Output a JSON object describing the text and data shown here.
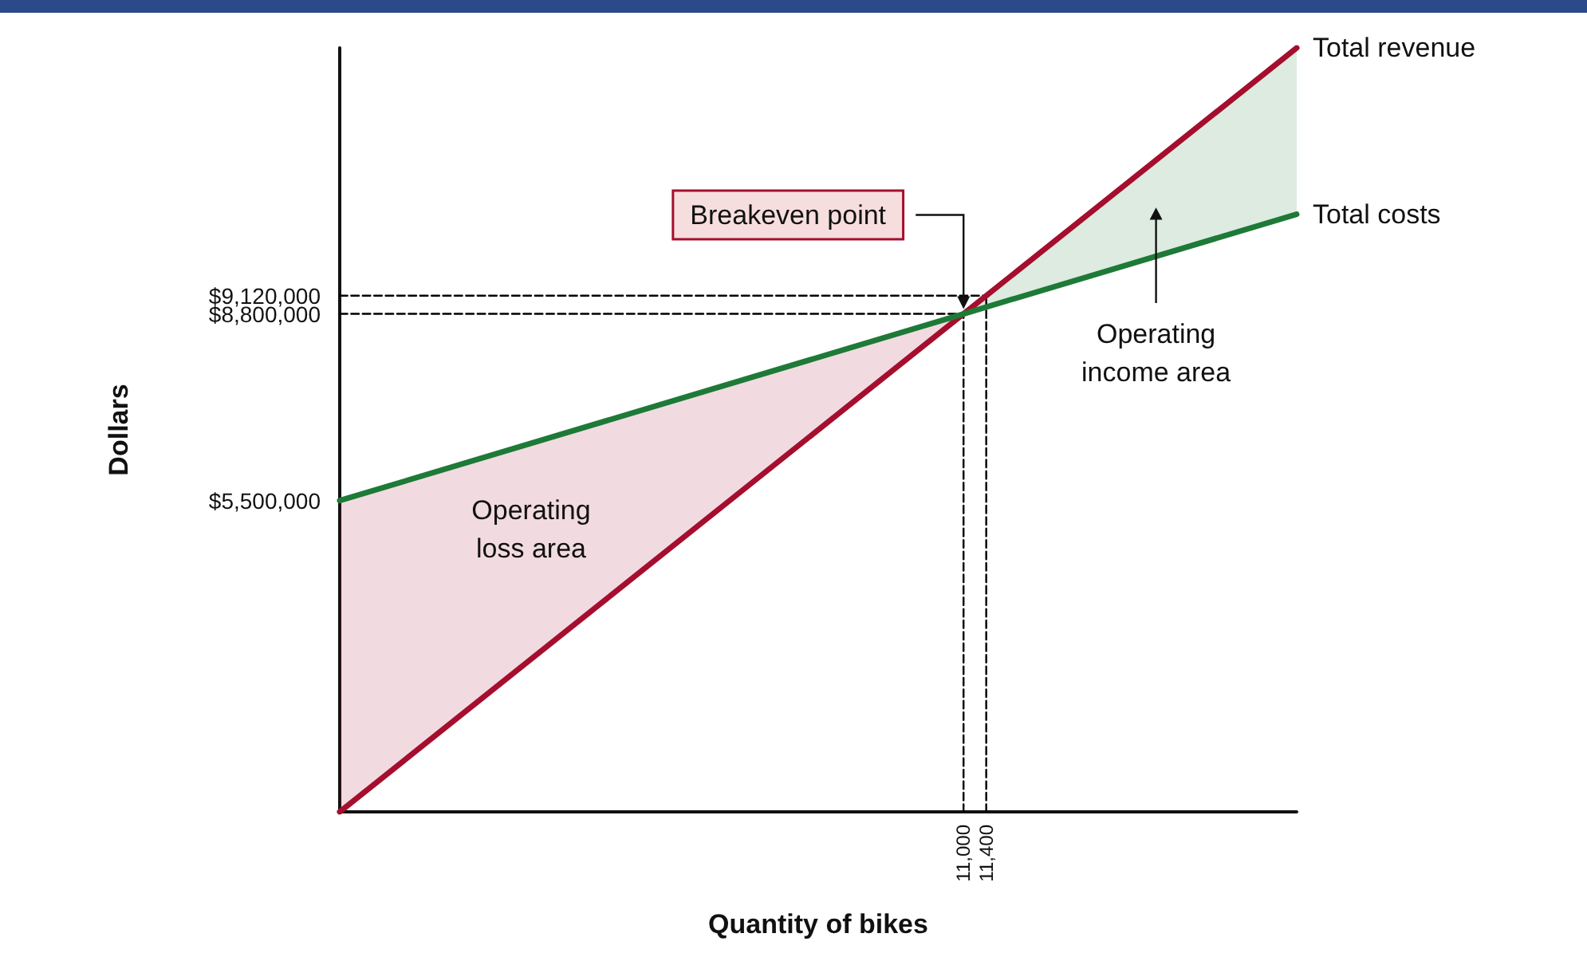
{
  "chart_data": {
    "type": "line",
    "xlabel": "Quantity of bikes",
    "ylabel": "Dollars",
    "xlim": [
      0,
      16875
    ],
    "ylim": [
      0,
      13500000
    ],
    "xticks": [
      {
        "value": 11000,
        "label": "11,000"
      },
      {
        "value": 11400,
        "label": "11,400"
      }
    ],
    "yticks": [
      {
        "value": 5500000,
        "label": "$5,500,000"
      },
      {
        "value": 8800000,
        "label": "$8,800,000"
      },
      {
        "value": 9120000,
        "label": "$9,120,000"
      }
    ],
    "series": [
      {
        "line_style": "dashed",
        "color": "#000000",
        "x": [
          0,
          11000
        ],
        "values": [
          8800000,
          8800000
        ]
      },
      {
        "line_style": "dashed",
        "color": "#000000",
        "x": [
          0,
          11400
        ],
        "values": [
          9120000,
          9120000
        ]
      },
      {
        "line_style": "dashed",
        "color": "#000000",
        "x": [
          11000,
          11000
        ],
        "values": [
          0,
          8800000
        ]
      },
      {
        "line_style": "dashed",
        "color": "#000000",
        "x": [
          11400,
          11400
        ],
        "values": [
          0,
          9120000
        ]
      },
      {
        "name": "Total revenue",
        "color": "#a50e2d",
        "x": [
          0,
          11000,
          16875
        ],
        "values": [
          0,
          8800000,
          13500000
        ],
        "lower": [
          0,
          8800000,
          null
        ],
        "upper": [
          5500000,
          8800000,
          null
        ]
      },
      {
        "name": "Total costs",
        "color": "#1e7a37",
        "x": [
          0,
          11000,
          16875
        ],
        "values": [
          5500000,
          8800000,
          10560000
        ],
        "lower": [
          null,
          8800000,
          10560000
        ],
        "upper": [
          null,
          8800000,
          13500000
        ]
      }
    ],
    "annotations": [
      {
        "text": "Breakeven point",
        "x": 11000,
        "y": 8800000
      },
      "Operating\nloss area",
      "Operating\nincome area"
    ],
    "marker": "none",
    "line_style": "solid",
    "grid": false,
    "legend": false
  }
}
